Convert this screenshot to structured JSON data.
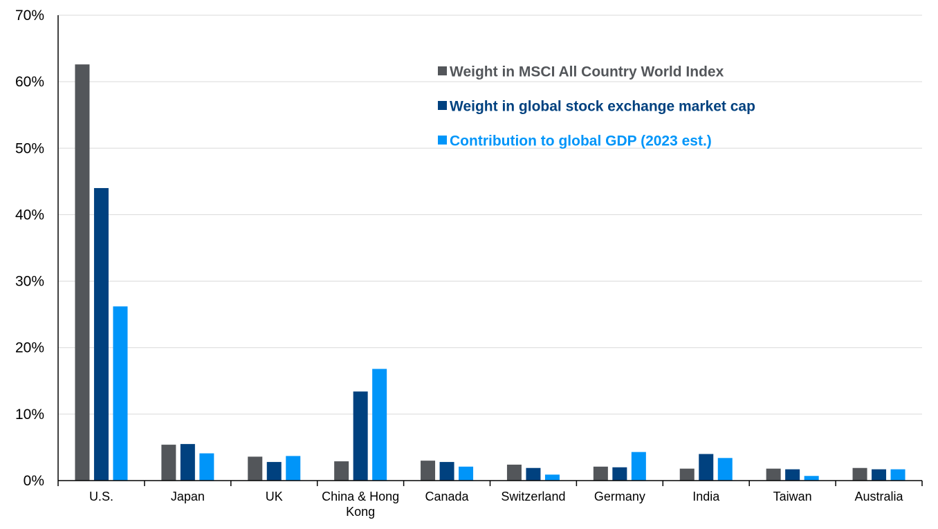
{
  "chart_data": {
    "type": "bar",
    "categories": [
      "U.S.",
      "Japan",
      "UK",
      "China & Hong Kong",
      "Canada",
      "Switzerland",
      "Germany",
      "India",
      "Taiwan",
      "Australia"
    ],
    "series": [
      {
        "name": "Weight in MSCI All Country World Index",
        "color": "#53565a",
        "values": [
          62.6,
          5.4,
          3.6,
          2.9,
          3.0,
          2.4,
          2.1,
          1.8,
          1.8,
          1.9
        ]
      },
      {
        "name": "Weight in global stock exchange market cap",
        "color": "#00417f",
        "values": [
          44.0,
          5.5,
          2.8,
          13.4,
          2.8,
          1.9,
          2.0,
          4.0,
          1.7,
          1.7
        ]
      },
      {
        "name": "Contribution to global GDP (2023 est.)",
        "color": "#0095f9",
        "values": [
          26.2,
          4.1,
          3.7,
          16.8,
          2.1,
          0.9,
          4.3,
          3.4,
          0.7,
          1.7
        ]
      }
    ],
    "y_ticks": [
      "0%",
      "10%",
      "20%",
      "30%",
      "40%",
      "50%",
      "60%",
      "70%"
    ],
    "ylim": [
      0,
      70
    ],
    "title": "",
    "xlabel": "",
    "ylabel": "",
    "grid": true,
    "legend": "top-right"
  }
}
